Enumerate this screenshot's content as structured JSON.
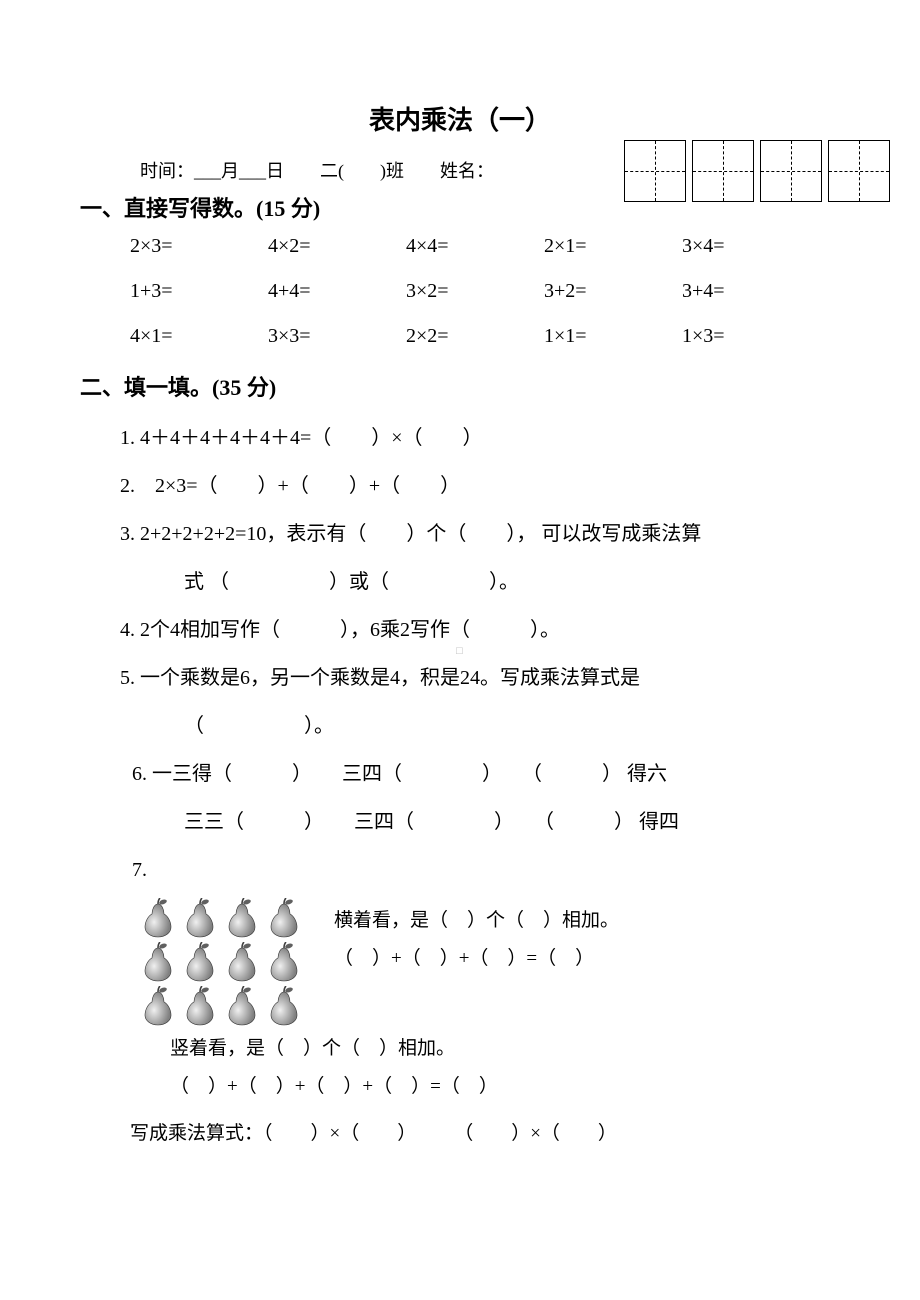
{
  "title": "表内乘法（一）",
  "info_line": "时间：___月___日　　二(　　)班　　姓名：",
  "section1": {
    "header": "一、直接写得数。(15 分)",
    "rows": [
      [
        "2×3=",
        "4×2=",
        "4×4=",
        "2×1=",
        "3×4="
      ],
      [
        "1+3=",
        "4+4=",
        "3×2=",
        "3+2=",
        "3+4="
      ],
      [
        "4×1=",
        "3×3=",
        "2×2=",
        "1×1=",
        "1×3="
      ]
    ]
  },
  "section2": {
    "header": "二、填一填。(35 分)",
    "q1": "1. 4＋4＋4＋4＋4＋4=（　　）×（　　）",
    "q2": "2.　2×3=（　　）+（　　）+（　　）",
    "q3a": "3. 2+2+2+2+2=10，表示有（　　）个（　　），  可以改写成乘法算",
    "q3b": "式 （　　　　　）或（　　　　　）。",
    "q4": "4. 2个4相加写作（　　　），6乘2写作（　　　）。",
    "q5a": "5.  一个乘数是6，另一个乘数是4，积是24。写成乘法算式是",
    "q5b": "（　　　　　）。",
    "q6a": "6.  一三得（　　　）　　三四（　　　　）　　（　　　） 得六",
    "q6b": "三三（　　　）　　三四（　　　　）　　（　　　） 得四",
    "q7_label": "7.",
    "q7_horiz1": "横着看，是（　）个（　）相加。",
    "q7_horiz2": "（　）+（　）+（　）=（　）",
    "q7_vert1": "竖着看，是（　）个（　）相加。",
    "q7_vert2": "（　）+（　）+（　）+（　）=（　）",
    "q7_mult": "写成乘法算式：（　　）×（　　）　　　（　　）×（　　）"
  },
  "pear_count": 12,
  "pear_svg": {
    "body_fill": "#808080",
    "body_gradient_light": "#f0f0f0",
    "leaf_fill": "#606060",
    "stem_fill": "#404040"
  }
}
